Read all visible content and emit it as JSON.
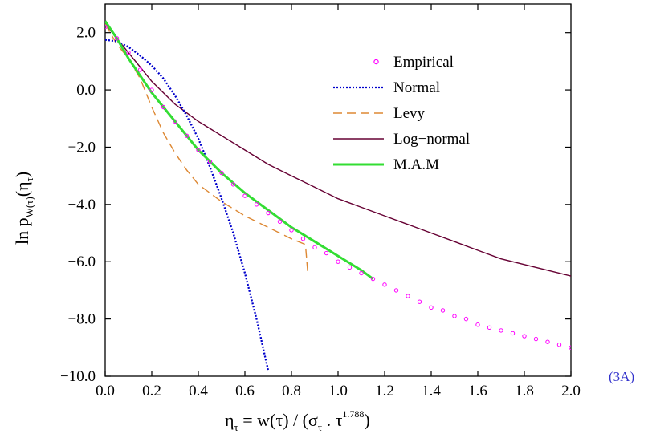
{
  "panel_label": "(3A)",
  "chart_data": {
    "type": "line",
    "title": "",
    "xlabel": {
      "main": "η",
      "main_sub": "τ",
      "mid": " = w(τ) / (σ",
      "mid_sub": "τ",
      "dot": " . τ",
      "exp": "1.788",
      "close": ")"
    },
    "ylabel": {
      "pre": "ln p",
      "sub": "W(τ)",
      "arg": "(η",
      "arg_sub": "τ",
      "close": ")"
    },
    "xlim": [
      0.0,
      2.0
    ],
    "ylim": [
      -10.0,
      3.0
    ],
    "x_ticks": [
      0.0,
      0.2,
      0.4,
      0.6,
      0.8,
      1.0,
      1.2,
      1.4,
      1.6,
      1.8,
      2.0
    ],
    "x_tick_labels": [
      "0.0",
      "0.2",
      "0.4",
      "0.6",
      "0.8",
      "1.0",
      "1.2",
      "1.4",
      "1.6",
      "1.8",
      "2.0"
    ],
    "y_ticks": [
      -10.0,
      -8.0,
      -6.0,
      -4.0,
      -2.0,
      0.0,
      2.0
    ],
    "y_tick_labels": [
      "−10.0",
      "−8.0",
      "−6.0",
      "−4.0",
      "−2.0",
      "0.0",
      "2.0"
    ],
    "grid": false,
    "legend_position": "top-right",
    "series": [
      {
        "name": "Empirical",
        "style": "markers",
        "color": "#ff00ff",
        "points": [
          [
            0.0,
            2.2
          ],
          [
            0.05,
            1.8
          ],
          [
            0.1,
            1.3
          ],
          [
            0.15,
            0.7
          ],
          [
            0.2,
            0.0
          ],
          [
            0.25,
            -0.6
          ],
          [
            0.3,
            -1.1
          ],
          [
            0.35,
            -1.6
          ],
          [
            0.4,
            -2.1
          ],
          [
            0.45,
            -2.5
          ],
          [
            0.5,
            -2.9
          ],
          [
            0.55,
            -3.3
          ],
          [
            0.6,
            -3.7
          ],
          [
            0.65,
            -4.0
          ],
          [
            0.7,
            -4.3
          ],
          [
            0.75,
            -4.6
          ],
          [
            0.8,
            -4.9
          ],
          [
            0.85,
            -5.2
          ],
          [
            0.9,
            -5.5
          ],
          [
            0.95,
            -5.7
          ],
          [
            1.0,
            -6.0
          ],
          [
            1.05,
            -6.2
          ],
          [
            1.1,
            -6.4
          ],
          [
            1.15,
            -6.6
          ],
          [
            1.2,
            -6.8
          ],
          [
            1.25,
            -7.0
          ],
          [
            1.3,
            -7.2
          ],
          [
            1.35,
            -7.4
          ],
          [
            1.4,
            -7.6
          ],
          [
            1.45,
            -7.7
          ],
          [
            1.5,
            -7.9
          ],
          [
            1.55,
            -8.0
          ],
          [
            1.6,
            -8.2
          ],
          [
            1.65,
            -8.3
          ],
          [
            1.7,
            -8.4
          ],
          [
            1.75,
            -8.5
          ],
          [
            1.8,
            -8.6
          ],
          [
            1.85,
            -8.7
          ],
          [
            1.9,
            -8.8
          ],
          [
            1.95,
            -8.9
          ],
          [
            2.0,
            -9.0
          ]
        ]
      },
      {
        "name": "Normal",
        "style": "dotted",
        "color": "#0000cc",
        "points": [
          [
            0.0,
            1.75
          ],
          [
            0.05,
            1.7
          ],
          [
            0.1,
            1.5
          ],
          [
            0.15,
            1.2
          ],
          [
            0.2,
            0.85
          ],
          [
            0.25,
            0.4
          ],
          [
            0.3,
            -0.2
          ],
          [
            0.35,
            -0.9
          ],
          [
            0.4,
            -1.7
          ],
          [
            0.45,
            -2.7
          ],
          [
            0.5,
            -3.8
          ],
          [
            0.55,
            -5.0
          ],
          [
            0.6,
            -6.4
          ],
          [
            0.65,
            -8.0
          ],
          [
            0.7,
            -9.8
          ]
        ]
      },
      {
        "name": "Levy",
        "style": "dashed",
        "color": "#dd8833",
        "points": [
          [
            0.0,
            2.3
          ],
          [
            0.05,
            1.6
          ],
          [
            0.1,
            1.1
          ],
          [
            0.15,
            0.4
          ],
          [
            0.2,
            -0.6
          ],
          [
            0.25,
            -1.5
          ],
          [
            0.3,
            -2.2
          ],
          [
            0.35,
            -2.8
          ],
          [
            0.4,
            -3.3
          ],
          [
            0.5,
            -3.9
          ],
          [
            0.6,
            -4.4
          ],
          [
            0.7,
            -4.8
          ],
          [
            0.8,
            -5.2
          ],
          [
            0.86,
            -5.4
          ],
          [
            0.87,
            -6.4
          ]
        ]
      },
      {
        "name": "Log−normal",
        "style": "solid",
        "color": "#660033",
        "points": [
          [
            0.0,
            2.3
          ],
          [
            0.05,
            1.8
          ],
          [
            0.1,
            1.3
          ],
          [
            0.15,
            0.8
          ],
          [
            0.2,
            0.3
          ],
          [
            0.25,
            -0.1
          ],
          [
            0.3,
            -0.5
          ],
          [
            0.4,
            -1.1
          ],
          [
            0.5,
            -1.6
          ],
          [
            0.6,
            -2.1
          ],
          [
            0.7,
            -2.6
          ],
          [
            0.8,
            -3.0
          ],
          [
            0.9,
            -3.4
          ],
          [
            1.0,
            -3.8
          ],
          [
            1.1,
            -4.1
          ],
          [
            1.2,
            -4.4
          ],
          [
            1.3,
            -4.7
          ],
          [
            1.4,
            -5.0
          ],
          [
            1.5,
            -5.3
          ],
          [
            1.6,
            -5.6
          ],
          [
            1.7,
            -5.9
          ],
          [
            1.8,
            -6.1
          ],
          [
            1.9,
            -6.3
          ],
          [
            2.0,
            -6.5
          ]
        ]
      },
      {
        "name": "M.A.M",
        "style": "solid-thick",
        "color": "#33dd33",
        "points": [
          [
            0.0,
            2.4
          ],
          [
            0.05,
            1.8
          ],
          [
            0.1,
            1.1
          ],
          [
            0.15,
            0.5
          ],
          [
            0.2,
            -0.1
          ],
          [
            0.25,
            -0.6
          ],
          [
            0.3,
            -1.1
          ],
          [
            0.35,
            -1.6
          ],
          [
            0.4,
            -2.1
          ],
          [
            0.5,
            -2.9
          ],
          [
            0.6,
            -3.6
          ],
          [
            0.7,
            -4.2
          ],
          [
            0.8,
            -4.8
          ],
          [
            0.9,
            -5.3
          ],
          [
            1.0,
            -5.8
          ],
          [
            1.1,
            -6.3
          ],
          [
            1.15,
            -6.6
          ]
        ]
      }
    ]
  }
}
